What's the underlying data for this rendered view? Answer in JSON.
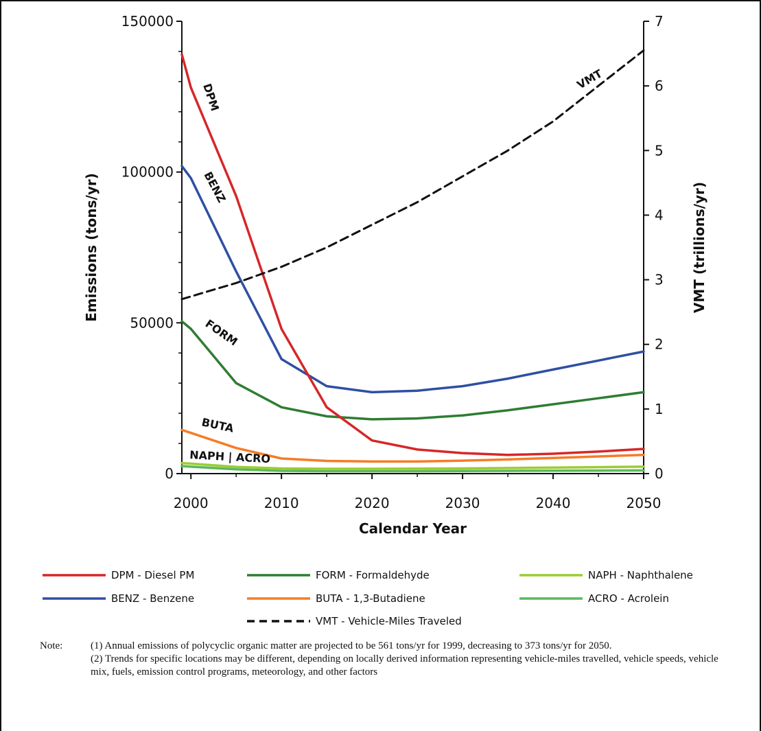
{
  "chart_data": {
    "type": "line",
    "xlabel": "Calendar Year",
    "ylabel": "Emissions (tons/yr)",
    "y2label": "VMT (trillions/yr)",
    "xlim": [
      1999,
      2050
    ],
    "ylim": [
      0,
      150000
    ],
    "y2lim": [
      0,
      7
    ],
    "xticks": [
      2000,
      2010,
      2020,
      2030,
      2040,
      2050
    ],
    "yticks": [
      0,
      50000,
      100000,
      150000
    ],
    "y2ticks": [
      0,
      1,
      2,
      3,
      4,
      5,
      6,
      7
    ],
    "grid": false,
    "legend_position": "bottom",
    "series": [
      {
        "id": "dpm",
        "name": "DPM - Diesel PM",
        "label": "DPM",
        "axis": "left",
        "color": "#d62728",
        "dash": false,
        "x": [
          1999,
          2000,
          2005,
          2010,
          2015,
          2020,
          2025,
          2030,
          2035,
          2040,
          2045,
          2050
        ],
        "y": [
          139000,
          128000,
          92000,
          48000,
          22000,
          11000,
          8000,
          6800,
          6200,
          6600,
          7300,
          8200
        ]
      },
      {
        "id": "benz",
        "name": "BENZ - Benzene",
        "label": "BENZ",
        "axis": "left",
        "color": "#2e4fa3",
        "dash": false,
        "x": [
          1999,
          2000,
          2005,
          2010,
          2015,
          2020,
          2025,
          2030,
          2035,
          2040,
          2045,
          2050
        ],
        "y": [
          102000,
          98000,
          67000,
          38000,
          29000,
          27000,
          27500,
          29000,
          31500,
          34500,
          37500,
          40500
        ]
      },
      {
        "id": "form",
        "name": "FORM - Formaldehyde",
        "label": "FORM",
        "axis": "left",
        "color": "#2e7d32",
        "dash": false,
        "x": [
          1999,
          2000,
          2005,
          2010,
          2015,
          2020,
          2025,
          2030,
          2035,
          2040,
          2045,
          2050
        ],
        "y": [
          50500,
          48000,
          30000,
          22000,
          19000,
          18000,
          18300,
          19300,
          21000,
          23000,
          25000,
          27000
        ]
      },
      {
        "id": "buta",
        "name": "BUTA - 1,3-Butadiene",
        "label": "BUTA",
        "axis": "left",
        "color": "#f57c26",
        "dash": false,
        "x": [
          1999,
          2000,
          2005,
          2010,
          2015,
          2020,
          2025,
          2030,
          2035,
          2040,
          2045,
          2050
        ],
        "y": [
          14500,
          13500,
          8500,
          5000,
          4200,
          4000,
          4000,
          4300,
          4700,
          5200,
          5700,
          6200
        ]
      },
      {
        "id": "naph",
        "name": "NAPH - Naphthalene",
        "label": "NAPH",
        "axis": "left",
        "color": "#9acd32",
        "dash": false,
        "x": [
          1999,
          2000,
          2005,
          2010,
          2015,
          2020,
          2025,
          2030,
          2035,
          2040,
          2045,
          2050
        ],
        "y": [
          3500,
          3300,
          2200,
          1700,
          1600,
          1600,
          1650,
          1700,
          1850,
          2000,
          2150,
          2300
        ]
      },
      {
        "id": "acro",
        "name": "ACRO - Acrolein",
        "label": "ACRO",
        "axis": "left",
        "color": "#5cb85c",
        "dash": false,
        "x": [
          1999,
          2000,
          2005,
          2010,
          2015,
          2020,
          2025,
          2030,
          2035,
          2040,
          2045,
          2050
        ],
        "y": [
          2500,
          2300,
          1400,
          900,
          800,
          800,
          800,
          850,
          900,
          950,
          1000,
          1050
        ]
      },
      {
        "id": "vmt",
        "name": "VMT - Vehicle-Miles Traveled",
        "label": "VMT",
        "axis": "right",
        "color": "#111111",
        "dash": true,
        "x": [
          1999,
          2005,
          2010,
          2015,
          2020,
          2025,
          2030,
          2035,
          2040,
          2045,
          2050
        ],
        "y": [
          2.7,
          2.95,
          3.2,
          3.5,
          3.85,
          4.2,
          4.6,
          5.0,
          5.45,
          6.0,
          6.55
        ]
      }
    ],
    "label_names": {
      "naph_acro": "NAPH | ACRO"
    }
  },
  "legend": [
    {
      "text": "DPM - Diesel PM",
      "color": "#d62728",
      "dash": false
    },
    {
      "text": "FORM - Formaldehyde",
      "color": "#2e7d32",
      "dash": false
    },
    {
      "text": "NAPH - Naphthalene",
      "color": "#9acd32",
      "dash": false
    },
    {
      "text": "BENZ - Benzene",
      "color": "#2e4fa3",
      "dash": false
    },
    {
      "text": "BUTA - 1,3-Butadiene",
      "color": "#f57c26",
      "dash": false
    },
    {
      "text": "ACRO - Acrolein",
      "color": "#5cb85c",
      "dash": false
    },
    {
      "text": "VMT - Vehicle-Miles Traveled",
      "color": "#111111",
      "dash": true
    }
  ],
  "notes": {
    "label": "Note:",
    "line1": "(1) Annual emissions of polycyclic organic matter are projected to be 561 tons/yr for 1999, decreasing to 373 tons/yr for 2050.",
    "line2": "(2)  Trends for specific locations may be different, depending on locally derived information representing vehicle-miles travelled, vehicle speeds, vehicle mix, fuels, emission control programs, meteorology, and other factors"
  }
}
